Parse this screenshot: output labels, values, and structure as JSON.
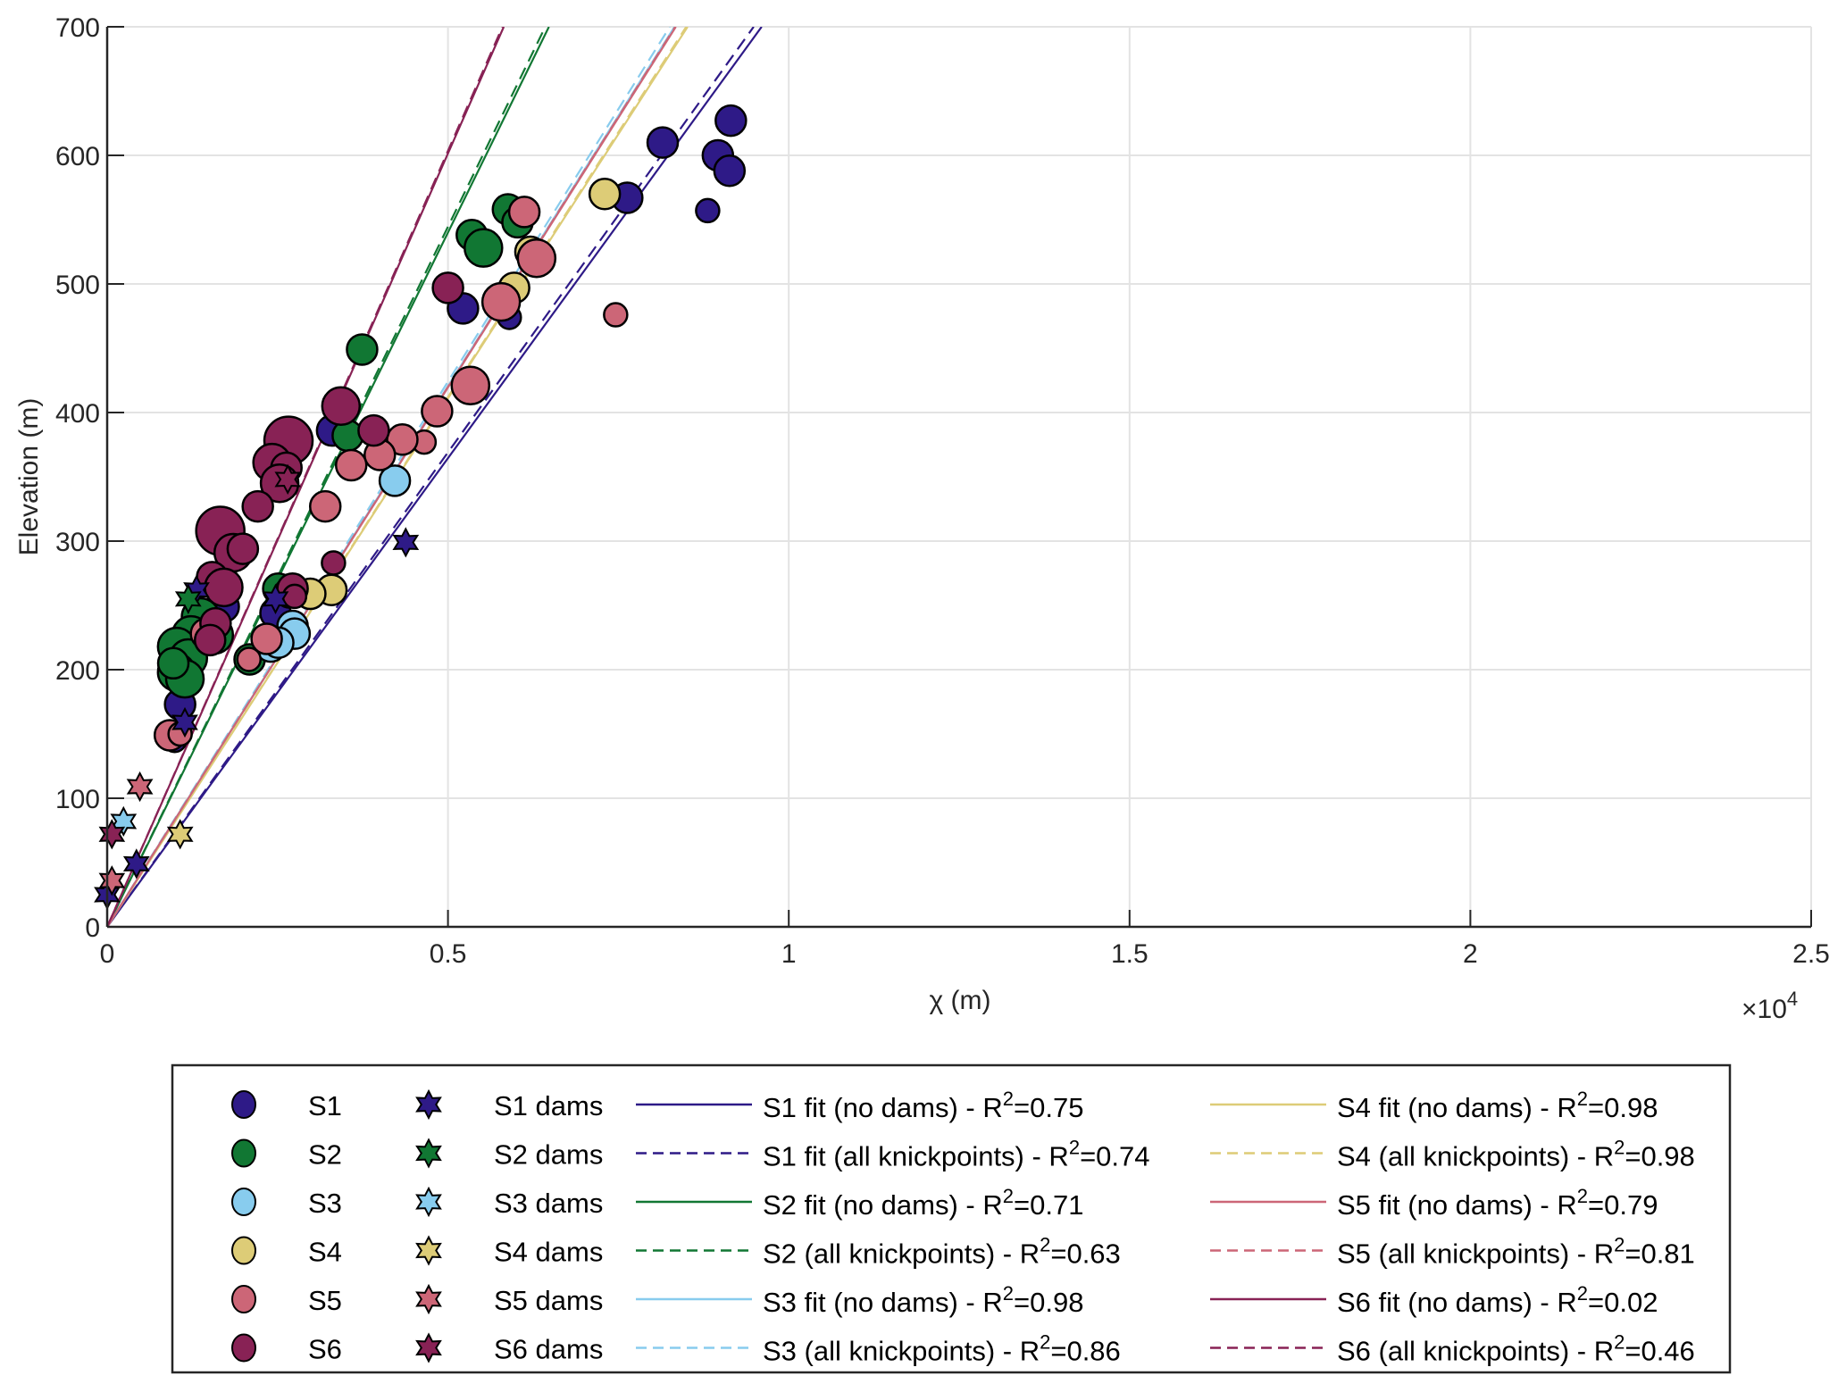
{
  "chart_data": {
    "type": "scatter",
    "title": "",
    "xlabel": "χ (m)",
    "ylabel": "Elevation (m)",
    "x_exponent_label": "×10",
    "x_exponent": "4",
    "xlim": [
      0,
      2.5
    ],
    "ylim": [
      0,
      700
    ],
    "xticks": [
      0,
      0.5,
      1,
      1.5,
      2,
      2.5
    ],
    "xtick_labels": [
      "0",
      "0.5",
      "1",
      "1.5",
      "2",
      "2.5"
    ],
    "yticks": [
      0,
      100,
      200,
      300,
      400,
      500,
      600,
      700
    ],
    "ytick_labels": [
      "0",
      "100",
      "200",
      "300",
      "400",
      "500",
      "600",
      "700"
    ],
    "grid": true,
    "legend_position": "bottom-outside",
    "x_units_note": "x values in units of 10^4 m",
    "series": [
      {
        "name": "S1",
        "marker": "circle",
        "color": "#2E1A87",
        "points": [
          [
            0.915,
            627,
            2
          ],
          [
            0.815,
            610,
            2
          ],
          [
            0.896,
            600,
            2
          ],
          [
            0.913,
            588,
            2
          ],
          [
            0.763,
            567,
            2
          ],
          [
            0.881,
            557,
            1
          ],
          [
            0.522,
            481,
            2
          ],
          [
            0.59,
            474,
            1
          ],
          [
            0.33,
            386,
            2
          ],
          [
            0.247,
            244,
            2
          ],
          [
            0.171,
            249,
            2
          ],
          [
            0.147,
            238,
            2
          ],
          [
            0.107,
            173,
            2
          ],
          [
            0.099,
            145,
            1
          ]
        ]
      },
      {
        "name": "S2",
        "marker": "circle",
        "color": "#117733",
        "points": [
          [
            0.374,
            449,
            2
          ],
          [
            0.588,
            558,
            2
          ],
          [
            0.602,
            548,
            2
          ],
          [
            0.535,
            538,
            2
          ],
          [
            0.552,
            528,
            3
          ],
          [
            0.353,
            382,
            2
          ],
          [
            0.251,
            263,
            2
          ],
          [
            0.137,
            241,
            3
          ],
          [
            0.123,
            227,
            3
          ],
          [
            0.102,
            218,
            3
          ],
          [
            0.119,
            209,
            3
          ],
          [
            0.102,
            198,
            3
          ],
          [
            0.114,
            193,
            3
          ],
          [
            0.097,
            205,
            2
          ],
          [
            0.157,
            227,
            3
          ],
          [
            0.209,
            208,
            2
          ]
        ]
      },
      {
        "name": "S3",
        "marker": "circle",
        "color": "#88CCEE",
        "points": [
          [
            0.422,
            347,
            2
          ],
          [
            0.272,
            234,
            2
          ],
          [
            0.275,
            228,
            2
          ],
          [
            0.24,
            218,
            2
          ],
          [
            0.251,
            221,
            2
          ]
        ]
      },
      {
        "name": "S4",
        "marker": "circle",
        "color": "#DDCC77",
        "points": [
          [
            0.73,
            570,
            2
          ],
          [
            0.621,
            525,
            2
          ],
          [
            0.597,
            497,
            2
          ],
          [
            0.329,
            262,
            2
          ],
          [
            0.298,
            259,
            2
          ],
          [
            0.268,
            260,
            2
          ]
        ]
      },
      {
        "name": "S5",
        "marker": "circle",
        "color": "#CC6677",
        "points": [
          [
            0.612,
            556,
            2
          ],
          [
            0.746,
            476,
            1
          ],
          [
            0.63,
            520,
            3
          ],
          [
            0.578,
            486,
            3
          ],
          [
            0.533,
            421,
            3
          ],
          [
            0.484,
            401,
            2
          ],
          [
            0.465,
            377,
            1
          ],
          [
            0.433,
            379,
            2
          ],
          [
            0.4,
            367,
            2
          ],
          [
            0.358,
            359,
            2
          ],
          [
            0.32,
            327,
            2
          ],
          [
            0.234,
            224,
            2
          ],
          [
            0.208,
            208,
            1
          ],
          [
            0.145,
            228,
            2
          ],
          [
            0.092,
            149,
            2
          ],
          [
            0.107,
            150,
            1
          ]
        ]
      },
      {
        "name": "S6",
        "marker": "circle",
        "color": "#882255",
        "points": [
          [
            0.5,
            497,
            2
          ],
          [
            0.343,
            405,
            3
          ],
          [
            0.391,
            386,
            2
          ],
          [
            0.266,
            378,
            4
          ],
          [
            0.242,
            361,
            3
          ],
          [
            0.263,
            357,
            2
          ],
          [
            0.253,
            345,
            3
          ],
          [
            0.221,
            327,
            2
          ],
          [
            0.166,
            308,
            4
          ],
          [
            0.185,
            291,
            3
          ],
          [
            0.199,
            294,
            2
          ],
          [
            0.154,
            272,
            2
          ],
          [
            0.171,
            264,
            3
          ],
          [
            0.332,
            283,
            1
          ],
          [
            0.272,
            263,
            2
          ],
          [
            0.275,
            257,
            1
          ],
          [
            0.159,
            236,
            2
          ],
          [
            0.151,
            223,
            2
          ]
        ]
      },
      {
        "name": "S1 dams",
        "marker": "hexagram",
        "color": "#2E1A87",
        "points": [
          [
            0.438,
            299
          ],
          [
            0.131,
            262
          ],
          [
            0.247,
            255
          ],
          [
            0.114,
            159
          ],
          [
            0.043,
            49
          ],
          [
            0.0,
            25
          ]
        ]
      },
      {
        "name": "S2 dams",
        "marker": "hexagram",
        "color": "#117733",
        "points": [
          [
            0.119,
            255
          ]
        ]
      },
      {
        "name": "S3 dams",
        "marker": "hexagram",
        "color": "#88CCEE",
        "points": [
          [
            0.024,
            82
          ]
        ]
      },
      {
        "name": "S4 dams",
        "marker": "hexagram",
        "color": "#DDCC77",
        "points": [
          [
            0.107,
            72
          ]
        ]
      },
      {
        "name": "S5 dams",
        "marker": "hexagram",
        "color": "#CC6677",
        "points": [
          [
            0.048,
            109
          ],
          [
            0.007,
            36
          ]
        ]
      },
      {
        "name": "S6 dams",
        "marker": "hexagram",
        "color": "#882255",
        "points": [
          [
            0.265,
            348
          ],
          [
            0.007,
            72
          ]
        ]
      }
    ],
    "fits": [
      {
        "name": "S1 fit (no dams)",
        "r2": "0.75",
        "color": "#2E1A87",
        "style": "solid",
        "slope": 729
      },
      {
        "name": "S1 fit (all knickpoints)",
        "r2": "0.74",
        "color": "#2E1A87",
        "style": "dashed",
        "slope": 738
      },
      {
        "name": "S2 fit (no dams)",
        "r2": "0.71",
        "color": "#117733",
        "style": "solid",
        "slope": 1080
      },
      {
        "name": "S2 (all knickpoints)",
        "r2": "0.63",
        "color": "#117733",
        "style": "dashed",
        "slope": 1089
      },
      {
        "name": "S3 fit (no dams)",
        "r2": "0.98",
        "color": "#88CCEE",
        "style": "solid",
        "slope": 841
      },
      {
        "name": "S3 (all knickpoints)",
        "r2": "0.86",
        "color": "#88CCEE",
        "style": "dashed",
        "slope": 848
      },
      {
        "name": "S4 fit (no dams)",
        "r2": "0.98",
        "color": "#DDCC77",
        "style": "solid",
        "slope": 822
      },
      {
        "name": "S4 (all knickpoints)",
        "r2": "0.98",
        "color": "#DDCC77",
        "style": "dashed",
        "slope": 824
      },
      {
        "name": "S5 fit (no dams)",
        "r2": "0.79",
        "color": "#CC6677",
        "style": "solid",
        "slope": 839
      },
      {
        "name": "S5 (all knickpoints)",
        "r2": "0.81",
        "color": "#CC6677",
        "style": "dashed",
        "slope": 840
      },
      {
        "name": "S6 fit (no dams)",
        "r2": "0.02",
        "color": "#882255",
        "style": "solid",
        "slope": 1203
      },
      {
        "name": "S6 (all knickpoints)",
        "r2": "0.46",
        "color": "#882255",
        "style": "dashed",
        "slope": 1207
      }
    ],
    "legend": {
      "col1": [
        "S1",
        "S2",
        "S3",
        "S4",
        "S5",
        "S6"
      ],
      "col2": [
        "S1 dams",
        "S2 dams",
        "S3 dams",
        "S4 dams",
        "S5 dams",
        "S6 dams"
      ],
      "r2_prefix": " - R",
      "r2_sup": "2",
      "r2_eq": "="
    }
  }
}
